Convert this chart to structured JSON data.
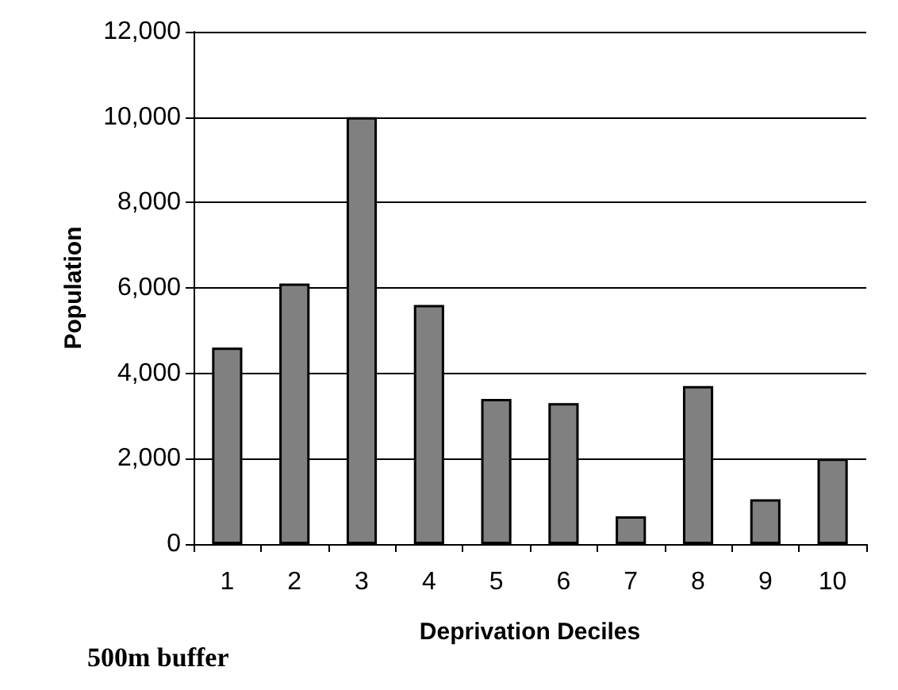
{
  "chart_data": {
    "type": "bar",
    "xlabel": "Deprivation Deciles",
    "ylabel": "Population",
    "categories": [
      "1",
      "2",
      "3",
      "4",
      "5",
      "6",
      "7",
      "8",
      "9",
      "10"
    ],
    "values": [
      4600,
      6100,
      10000,
      5600,
      3400,
      3300,
      650,
      3700,
      1050,
      2000
    ],
    "color": "#808080",
    "ylim": [
      0,
      12000
    ],
    "yticks": [
      0,
      {
        "value": 2000,
        "label": "2,000"
      },
      {
        "value": 4000,
        "label": "4,000"
      },
      {
        "value": 6000,
        "label": "6,000"
      },
      {
        "value": 8000,
        "label": "8,000"
      },
      {
        "value": 10000,
        "label": "10,000"
      },
      {
        "value": 12000,
        "label": "12,000"
      }
    ],
    "grid": "y",
    "annotations": [
      "500m buffer"
    ]
  }
}
